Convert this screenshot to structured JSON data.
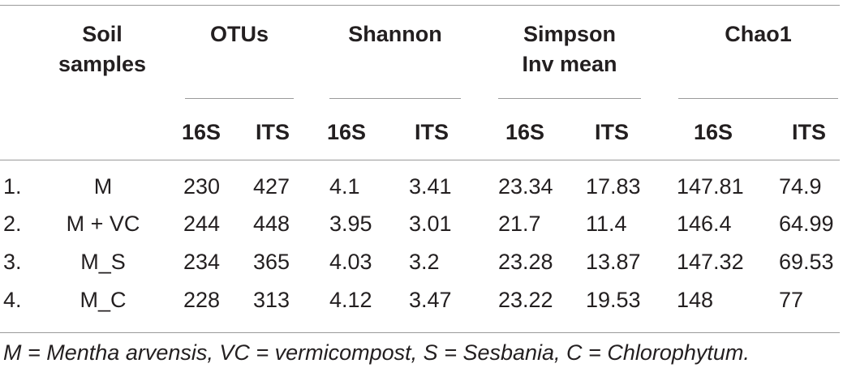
{
  "table": {
    "header": {
      "soil_samples": "Soil samples",
      "groups": [
        "OTUs",
        "Shannon",
        "Simpson Inv mean",
        "Chao1"
      ],
      "subcolumns": [
        "16S",
        "ITS",
        "16S",
        "ITS",
        "16S",
        "ITS",
        "16S",
        "ITS"
      ]
    },
    "rows": [
      {
        "index": "1.",
        "sample": "M",
        "values": [
          "230",
          "427",
          "4.1",
          "3.41",
          "23.34",
          "17.83",
          "147.81",
          "74.9"
        ]
      },
      {
        "index": "2.",
        "sample": "M + VC",
        "values": [
          "244",
          "448",
          "3.95",
          "3.01",
          "21.7",
          "11.4",
          "146.4",
          "64.99"
        ]
      },
      {
        "index": "3.",
        "sample": "M_S",
        "values": [
          "234",
          "365",
          "4.03",
          "3.2",
          "23.28",
          "13.87",
          "147.32",
          "69.53"
        ]
      },
      {
        "index": "4.",
        "sample": "M_C",
        "values": [
          "228",
          "313",
          "4.12",
          "3.47",
          "23.22",
          "19.53",
          "148",
          "77"
        ]
      }
    ],
    "footnote": "M = Mentha arvensis, VC = vermicompost, S = Sesbania, C = Chlorophytum."
  }
}
